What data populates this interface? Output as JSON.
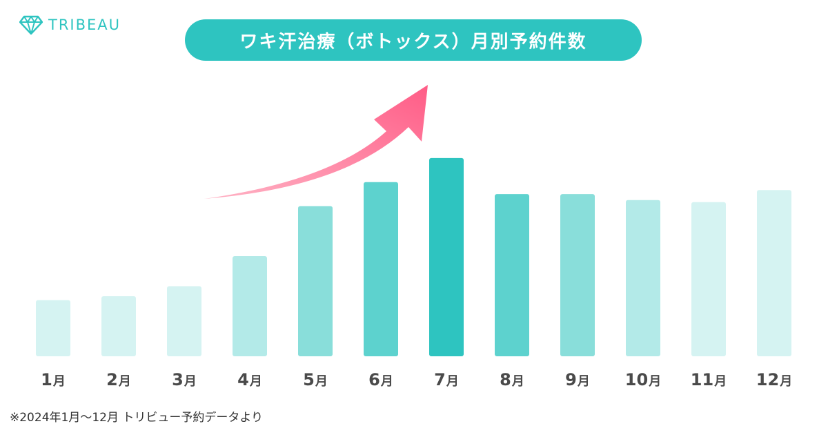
{
  "brand": {
    "name": "TRIBEAU",
    "icon": "diamond-icon",
    "color": "#2ec4c0"
  },
  "title_pill_color": "#2ec4c0",
  "chart_data": {
    "type": "bar",
    "title": "ワキ汗治療（ボトックス）月別予約件数",
    "categories": [
      "1月",
      "2月",
      "3月",
      "4月",
      "5月",
      "6月",
      "7月",
      "8月",
      "9月",
      "10月",
      "11月",
      "12月"
    ],
    "values": [
      28,
      30,
      35,
      50,
      75,
      87,
      99,
      81,
      81,
      78,
      77,
      83
    ],
    "ylim": [
      0,
      100
    ],
    "xlabel": "",
    "ylabel": "",
    "grid": false,
    "axis_values_printed": false,
    "bar_colors": [
      "#d5f3f2",
      "#d5f3f2",
      "#d5f3f2",
      "#b3eae8",
      "#89deda",
      "#5dd2ce",
      "#2ec4c0",
      "#5dd2ce",
      "#89deda",
      "#b3eae8",
      "#d5f3f2",
      "#d5f3f2"
    ],
    "annotation": "upward-trend-arrow",
    "arrow_colors": [
      "#ffb3c5",
      "#ff5c86"
    ]
  },
  "footer": {
    "source": "※2024年1月〜12月 トリビュー予約データより"
  }
}
